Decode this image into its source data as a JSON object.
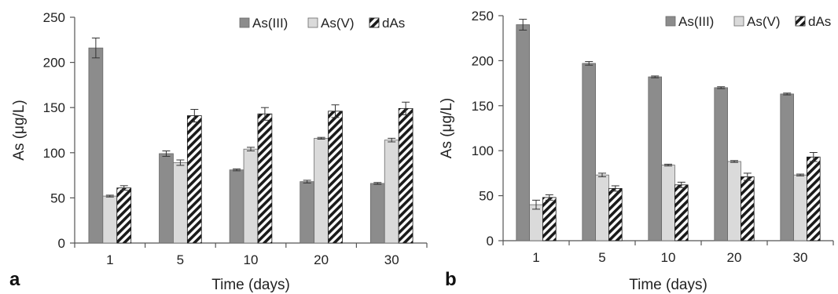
{
  "chart_data": [
    {
      "panel": "a",
      "type": "bar",
      "title": "",
      "xlabel": "Time (days)",
      "ylabel": "As (μg/L)",
      "ylim": [
        0,
        250
      ],
      "yticks": [
        0,
        50,
        100,
        150,
        200,
        250
      ],
      "categories": [
        "1",
        "5",
        "10",
        "20",
        "30"
      ],
      "grid": false,
      "legend": "top-right",
      "series": [
        {
          "name": "As(III)",
          "color": "#8c8c8c",
          "pattern": "solid",
          "values": [
            216,
            99,
            81,
            68,
            66
          ],
          "errors": [
            11,
            3,
            1,
            1.5,
            1
          ]
        },
        {
          "name": "As(V)",
          "color": "#dadada",
          "pattern": "solid",
          "values": [
            52,
            89,
            104,
            116,
            114
          ],
          "errors": [
            1,
            3,
            2,
            1,
            2
          ]
        },
        {
          "name": "dAs",
          "color": "#1a1a1a",
          "pattern": "diagonal-stripes",
          "values": [
            61,
            141,
            143,
            146,
            149
          ],
          "errors": [
            2.5,
            7,
            7,
            7,
            7
          ]
        }
      ]
    },
    {
      "panel": "b",
      "type": "bar",
      "title": "",
      "xlabel": "Time (days)",
      "ylabel": "As (μg/L)",
      "ylim": [
        0,
        250
      ],
      "yticks": [
        0,
        50,
        100,
        150,
        200,
        250
      ],
      "categories": [
        "1",
        "5",
        "10",
        "20",
        "30"
      ],
      "grid": false,
      "legend": "top-right",
      "series": [
        {
          "name": "As(III)",
          "color": "#8c8c8c",
          "pattern": "solid",
          "values": [
            240,
            197,
            182,
            170,
            163
          ],
          "errors": [
            6,
            2,
            1,
            1,
            1
          ]
        },
        {
          "name": "As(V)",
          "color": "#dadada",
          "pattern": "solid",
          "values": [
            40,
            73,
            84,
            88,
            73
          ],
          "errors": [
            5,
            2,
            1,
            1,
            1
          ]
        },
        {
          "name": "dAs",
          "color": "#1a1a1a",
          "pattern": "diagonal-stripes",
          "values": [
            48,
            58,
            62,
            71,
            93
          ],
          "errors": [
            3,
            3,
            3,
            4,
            5
          ]
        }
      ]
    }
  ]
}
